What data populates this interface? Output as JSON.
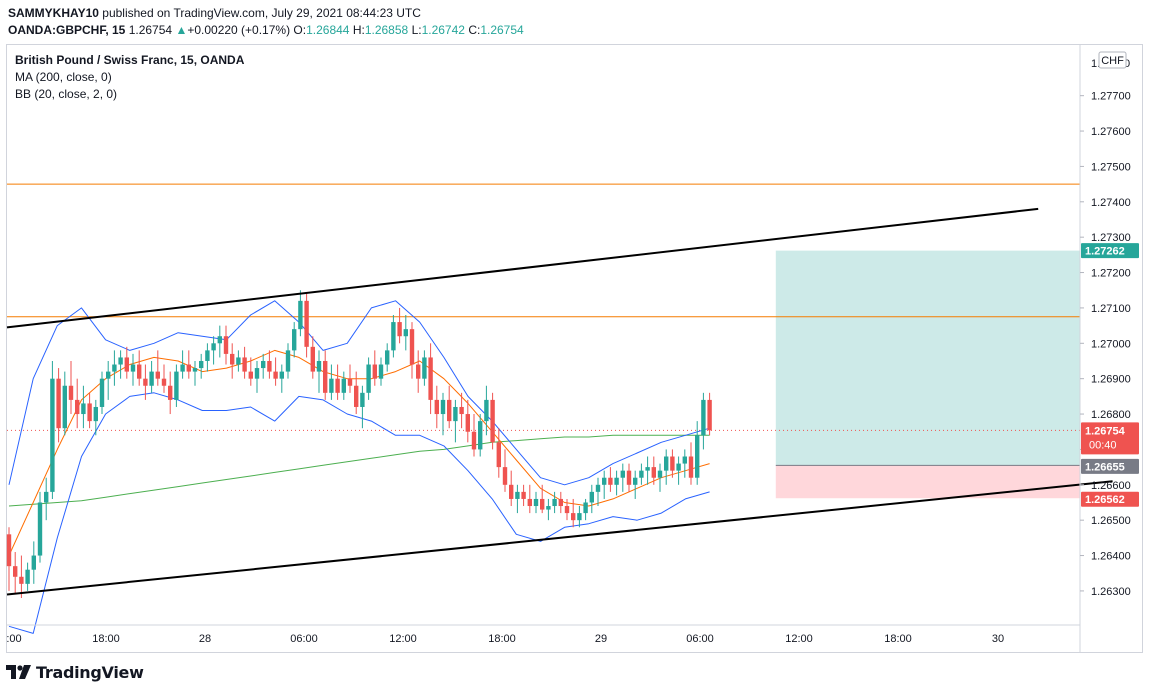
{
  "header": {
    "author": "SAMMYKHAY10",
    "published_text": "published on TradingView.com, July 29, 2021 08:44:23 UTC",
    "symbol": "OANDA:GBPCHF, 15",
    "last": "1.26754",
    "change": "+0.00220 (+0.17%)",
    "open_label": "O:",
    "open": "1.26844",
    "high_label": "H:",
    "high": "1.26858",
    "low_label": "L:",
    "low": "1.26742",
    "close_label": "C:",
    "close": "1.26754"
  },
  "legend": {
    "title": "British Pound / Swiss Franc, 15, OANDA",
    "ma": "MA (200, close, 0)",
    "bb": "BB (20, close, 2, 0)"
  },
  "currency_badge": "CHF",
  "footer": {
    "brand": "TradingView"
  },
  "price_badges": {
    "target": "1.27262",
    "current": "1.26754",
    "countdown": "00:40",
    "entry": "1.26655",
    "stop": "1.26562"
  },
  "colors": {
    "up": "#26a69a",
    "down": "#ef5350",
    "ma": "#4caf50",
    "bb_basis": "#ff6d00",
    "bb_band": "#2962ff",
    "hline": "#f57c00",
    "trend": "#000000",
    "target_zone": "#b2dfdb",
    "stop_zone": "#ffcdd2"
  },
  "chart_data": {
    "type": "candlestick",
    "y_axis_ticks": [
      "1.27700",
      "1.27600",
      "1.27500",
      "1.27400",
      "1.27300",
      "1.27200",
      "1.27100",
      "1.27000",
      "1.26900",
      "1.26800",
      "1.26700",
      "1.26600",
      "1.26500",
      "1.26400",
      "1.26300"
    ],
    "y_axis_top_partial": "1.277",
    "ylim": [
      1.262,
      1.2781
    ],
    "x_axis_ticks": [
      ":00",
      "18:00",
      "28",
      "06:00",
      "12:00",
      "18:00",
      "29",
      "06:00",
      "12:00",
      "18:00",
      "30"
    ],
    "horizontal_lines": [
      1.2745,
      1.27075
    ],
    "trendlines": [
      {
        "from": [
          0,
          1.27045
        ],
        "to": [
          166,
          1.2738
        ]
      },
      {
        "from": [
          0,
          1.2629
        ],
        "to": [
          178,
          1.2661
        ]
      }
    ],
    "position": {
      "type": "long",
      "entry": 1.26655,
      "target": 1.27262,
      "stop": 1.26562,
      "x_start": 124,
      "x_end": 178
    },
    "current_price": 1.26754,
    "candles": [
      [
        1.2646,
        1.2648,
        1.263,
        1.2637
      ],
      [
        1.2637,
        1.2641,
        1.2629,
        1.2634
      ],
      [
        1.2634,
        1.264,
        1.2628,
        1.2632
      ],
      [
        1.2632,
        1.2638,
        1.263,
        1.2636
      ],
      [
        1.2636,
        1.2644,
        1.2632,
        1.264
      ],
      [
        1.264,
        1.2658,
        1.2638,
        1.2655
      ],
      [
        1.2655,
        1.2662,
        1.265,
        1.2658
      ],
      [
        1.2658,
        1.2695,
        1.2656,
        1.269
      ],
      [
        1.269,
        1.2693,
        1.2672,
        1.2676
      ],
      [
        1.2676,
        1.2692,
        1.2674,
        1.2688
      ],
      [
        1.2688,
        1.2695,
        1.268,
        1.2684
      ],
      [
        1.2684,
        1.269,
        1.2676,
        1.268
      ],
      [
        1.268,
        1.2688,
        1.2676,
        1.2683
      ],
      [
        1.2683,
        1.2686,
        1.2676,
        1.2678
      ],
      [
        1.2678,
        1.2684,
        1.2674,
        1.2682
      ],
      [
        1.2682,
        1.2692,
        1.268,
        1.269
      ],
      [
        1.269,
        1.2695,
        1.2684,
        1.2692
      ],
      [
        1.2692,
        1.2698,
        1.2688,
        1.2694
      ],
      [
        1.2694,
        1.2698,
        1.269,
        1.2696
      ],
      [
        1.2696,
        1.2699,
        1.269,
        1.2692
      ],
      [
        1.2692,
        1.2697,
        1.2688,
        1.2694
      ],
      [
        1.2694,
        1.2698,
        1.2688,
        1.269
      ],
      [
        1.269,
        1.2694,
        1.2684,
        1.2688
      ],
      [
        1.2688,
        1.2695,
        1.2686,
        1.2692
      ],
      [
        1.2692,
        1.2698,
        1.2688,
        1.269
      ],
      [
        1.269,
        1.2694,
        1.2686,
        1.2688
      ],
      [
        1.2688,
        1.2692,
        1.268,
        1.2684
      ],
      [
        1.2684,
        1.2694,
        1.2682,
        1.2692
      ],
      [
        1.2692,
        1.2698,
        1.269,
        1.2694
      ],
      [
        1.2694,
        1.2698,
        1.269,
        1.2692
      ],
      [
        1.2692,
        1.2695,
        1.2688,
        1.2693
      ],
      [
        1.2693,
        1.2697,
        1.269,
        1.2695
      ],
      [
        1.2695,
        1.27,
        1.2692,
        1.2698
      ],
      [
        1.2698,
        1.2702,
        1.2694,
        1.27
      ],
      [
        1.27,
        1.2705,
        1.2696,
        1.2702
      ],
      [
        1.2702,
        1.2705,
        1.2694,
        1.2697
      ],
      [
        1.2697,
        1.27,
        1.269,
        1.2694
      ],
      [
        1.2694,
        1.2698,
        1.2692,
        1.2696
      ],
      [
        1.2696,
        1.2699,
        1.269,
        1.2692
      ],
      [
        1.2692,
        1.2696,
        1.2688,
        1.269
      ],
      [
        1.269,
        1.2695,
        1.2686,
        1.2693
      ],
      [
        1.2693,
        1.2697,
        1.269,
        1.2695
      ],
      [
        1.2695,
        1.2698,
        1.269,
        1.2692
      ],
      [
        1.2692,
        1.2696,
        1.2688,
        1.269
      ],
      [
        1.269,
        1.2694,
        1.2686,
        1.2692
      ],
      [
        1.2692,
        1.27,
        1.269,
        1.2698
      ],
      [
        1.2698,
        1.2706,
        1.2696,
        1.2704
      ],
      [
        1.2704,
        1.2715,
        1.2702,
        1.2712
      ],
      [
        1.2712,
        1.2714,
        1.2696,
        1.2699
      ],
      [
        1.2699,
        1.2702,
        1.269,
        1.2692
      ],
      [
        1.2692,
        1.2698,
        1.2686,
        1.2695
      ],
      [
        1.2695,
        1.2698,
        1.2684,
        1.2686
      ],
      [
        1.2686,
        1.2694,
        1.2684,
        1.269
      ],
      [
        1.269,
        1.2694,
        1.2684,
        1.2686
      ],
      [
        1.2686,
        1.2692,
        1.2684,
        1.269
      ],
      [
        1.269,
        1.2694,
        1.2686,
        1.2688
      ],
      [
        1.2688,
        1.2692,
        1.268,
        1.2682
      ],
      [
        1.2682,
        1.2688,
        1.2676,
        1.2686
      ],
      [
        1.2686,
        1.2696,
        1.2684,
        1.2694
      ],
      [
        1.2694,
        1.2698,
        1.2688,
        1.269
      ],
      [
        1.269,
        1.2696,
        1.2688,
        1.2694
      ],
      [
        1.2694,
        1.27,
        1.2692,
        1.2698
      ],
      [
        1.2698,
        1.2708,
        1.2696,
        1.2706
      ],
      [
        1.2706,
        1.271,
        1.27,
        1.2702
      ],
      [
        1.2702,
        1.2708,
        1.2698,
        1.2704
      ],
      [
        1.2704,
        1.2706,
        1.269,
        1.2694
      ],
      [
        1.2694,
        1.2698,
        1.2686,
        1.269
      ],
      [
        1.269,
        1.2698,
        1.2688,
        1.2696
      ],
      [
        1.2696,
        1.27,
        1.268,
        1.2684
      ],
      [
        1.2684,
        1.2688,
        1.2676,
        1.268
      ],
      [
        1.268,
        1.2686,
        1.2674,
        1.2684
      ],
      [
        1.2684,
        1.2688,
        1.2676,
        1.2678
      ],
      [
        1.2678,
        1.2684,
        1.2672,
        1.2682
      ],
      [
        1.2682,
        1.2686,
        1.2676,
        1.268
      ],
      [
        1.268,
        1.2684,
        1.2672,
        1.2675
      ],
      [
        1.2675,
        1.268,
        1.2668,
        1.267
      ],
      [
        1.267,
        1.268,
        1.2668,
        1.2678
      ],
      [
        1.2678,
        1.2688,
        1.2674,
        1.2684
      ],
      [
        1.2684,
        1.2686,
        1.267,
        1.2672
      ],
      [
        1.2672,
        1.2676,
        1.2662,
        1.2665
      ],
      [
        1.2665,
        1.267,
        1.2658,
        1.266
      ],
      [
        1.266,
        1.2664,
        1.2654,
        1.2656
      ],
      [
        1.2656,
        1.266,
        1.2652,
        1.2658
      ],
      [
        1.2658,
        1.266,
        1.2654,
        1.2656
      ],
      [
        1.2656,
        1.266,
        1.2652,
        1.2654
      ],
      [
        1.2654,
        1.2658,
        1.2652,
        1.2656
      ],
      [
        1.2656,
        1.266,
        1.2652,
        1.2653
      ],
      [
        1.2653,
        1.2656,
        1.265,
        1.2654
      ],
      [
        1.2654,
        1.2658,
        1.2652,
        1.2656
      ],
      [
        1.2656,
        1.2658,
        1.2652,
        1.2654
      ],
      [
        1.2654,
        1.2656,
        1.265,
        1.2652
      ],
      [
        1.2652,
        1.2656,
        1.2648,
        1.265
      ],
      [
        1.265,
        1.2654,
        1.2648,
        1.2652
      ],
      [
        1.2652,
        1.2656,
        1.265,
        1.2655
      ],
      [
        1.2655,
        1.266,
        1.2652,
        1.2658
      ],
      [
        1.2658,
        1.2662,
        1.2654,
        1.266
      ],
      [
        1.266,
        1.2664,
        1.2656,
        1.2662
      ],
      [
        1.2662,
        1.2665,
        1.2658,
        1.266
      ],
      [
        1.266,
        1.2664,
        1.2657,
        1.2662
      ],
      [
        1.2662,
        1.2666,
        1.2658,
        1.2664
      ],
      [
        1.2664,
        1.2666,
        1.2658,
        1.266
      ],
      [
        1.266,
        1.2664,
        1.2656,
        1.2662
      ],
      [
        1.2662,
        1.2666,
        1.266,
        1.2664
      ],
      [
        1.2664,
        1.2668,
        1.266,
        1.2665
      ],
      [
        1.2665,
        1.2668,
        1.266,
        1.2662
      ],
      [
        1.2662,
        1.2666,
        1.2658,
        1.2664
      ],
      [
        1.2664,
        1.267,
        1.266,
        1.2668
      ],
      [
        1.2668,
        1.267,
        1.2662,
        1.2664
      ],
      [
        1.2664,
        1.2668,
        1.266,
        1.2666
      ],
      [
        1.2666,
        1.267,
        1.2662,
        1.2668
      ],
      [
        1.2668,
        1.2672,
        1.266,
        1.2662
      ],
      [
        1.2662,
        1.2678,
        1.266,
        1.2674
      ],
      [
        1.2674,
        1.2686,
        1.267,
        1.2684
      ],
      [
        1.2684,
        1.2686,
        1.2674,
        1.26754
      ]
    ],
    "ma200": [
      1.2654,
      1.26545,
      1.2655,
      1.26555,
      1.26565,
      1.26575,
      1.26585,
      1.26595,
      1.26605,
      1.26615,
      1.26625,
      1.26635,
      1.26645,
      1.26655,
      1.26665,
      1.26675,
      1.26685,
      1.26695,
      1.267,
      1.2671,
      1.2672,
      1.26725,
      1.2673,
      1.26735,
      1.26735,
      1.2674,
      1.2674,
      1.2674,
      1.2674,
      1.2674
    ],
    "bb_basis": [
      1.264,
      1.2655,
      1.267,
      1.2684,
      1.269,
      1.2694,
      1.2696,
      1.2695,
      1.2692,
      1.2693,
      1.2695,
      1.2698,
      1.2696,
      1.2692,
      1.269,
      1.269,
      1.2692,
      1.2695,
      1.269,
      1.2683,
      1.2675,
      1.2667,
      1.2659,
      1.2655,
      1.2654,
      1.2656,
      1.2659,
      1.2662,
      1.2664,
      1.2666
    ],
    "bb_upper": [
      1.266,
      1.269,
      1.2705,
      1.271,
      1.2701,
      1.2698,
      1.27,
      1.2703,
      1.2702,
      1.2701,
      1.2708,
      1.2712,
      1.2706,
      1.2698,
      1.27,
      1.271,
      1.2712,
      1.2706,
      1.2696,
      1.2685,
      1.2678,
      1.267,
      1.2662,
      1.266,
      1.2662,
      1.2666,
      1.2669,
      1.2672,
      1.2674,
      1.2676
    ],
    "bb_lower": [
      1.262,
      1.2618,
      1.2645,
      1.2668,
      1.268,
      1.2685,
      1.2686,
      1.2684,
      1.2681,
      1.2681,
      1.2682,
      1.2678,
      1.2685,
      1.2684,
      1.268,
      1.2678,
      1.2674,
      1.2674,
      1.2671,
      1.2664,
      1.2656,
      1.2646,
      1.2644,
      1.2648,
      1.2649,
      1.2651,
      1.265,
      1.2652,
      1.2656,
      1.2658
    ]
  }
}
